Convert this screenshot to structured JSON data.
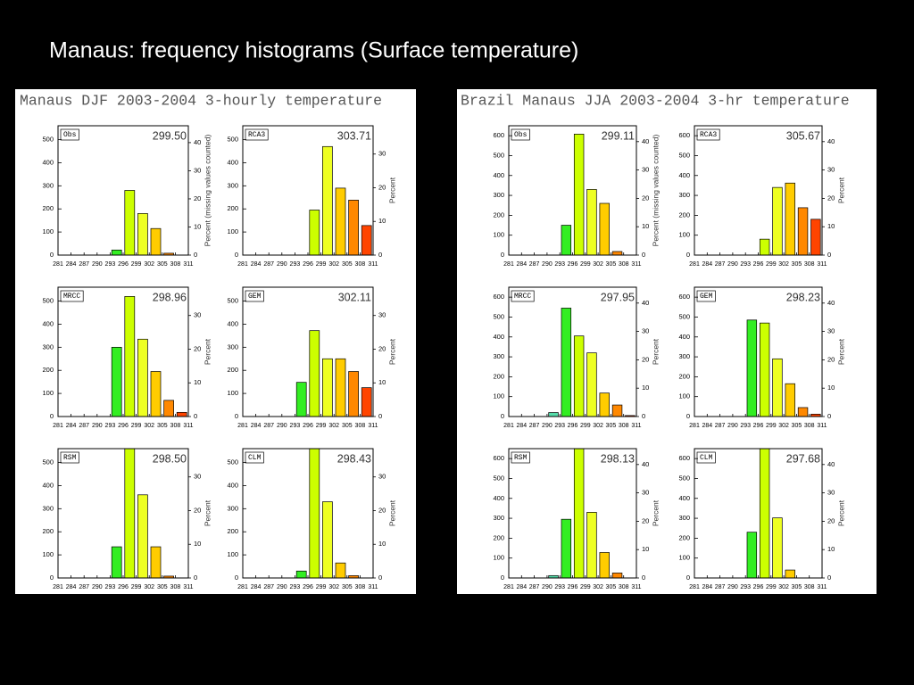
{
  "title": "Manaus: frequency histograms (Surface temperature)",
  "figure_titles": [
    "Manaus DJF 2003-2004 3-hourly temperature",
    "Brazil Manaus JJA 2003-2004 3-hr temperature"
  ],
  "bar_colors": [
    "#2255ff",
    "#2299ff",
    "#22ccdd",
    "#55ddaa",
    "#33ee22",
    "#ccff00",
    "#eeff22",
    "#ffcc00",
    "#ff8800",
    "#ff4400"
  ],
  "chart_data": [
    {
      "type": "histogram",
      "label": "Obs",
      "annotation": "299.50",
      "bins": [
        281,
        284,
        287,
        290,
        293,
        296,
        299,
        302,
        305,
        308,
        311
      ],
      "counts": [
        0,
        0,
        0,
        0,
        22,
        280,
        180,
        115,
        8,
        0
      ],
      "ylim": [
        0,
        560
      ],
      "yticks": [
        0,
        100,
        200,
        300,
        400,
        500
      ],
      "y2lim": [
        0,
        46
      ],
      "y2ticks": [
        0,
        10,
        20,
        30,
        40
      ],
      "y2label": "Percent (missing values counted)"
    },
    {
      "type": "histogram",
      "label": "RCA3",
      "annotation": "303.71",
      "bins": [
        281,
        284,
        287,
        290,
        293,
        296,
        299,
        302,
        305,
        308,
        311
      ],
      "counts": [
        0,
        0,
        0,
        0,
        0,
        195,
        470,
        290,
        238,
        128
      ],
      "ylim": [
        0,
        560
      ],
      "yticks": [
        0,
        100,
        200,
        300,
        400,
        500
      ],
      "y2lim": [
        0,
        38.4
      ],
      "y2ticks": [
        0,
        10,
        20,
        30
      ],
      "y2label": "Percent"
    },
    {
      "type": "histogram",
      "label": "MRCC",
      "annotation": "298.96",
      "bins": [
        281,
        284,
        287,
        290,
        293,
        296,
        299,
        302,
        305,
        308,
        311
      ],
      "counts": [
        0,
        0,
        0,
        0,
        300,
        520,
        335,
        195,
        70,
        18
      ],
      "ylim": [
        0,
        560
      ],
      "yticks": [
        0,
        100,
        200,
        300,
        400,
        500
      ],
      "y2lim": [
        0,
        38.4
      ],
      "y2ticks": [
        0,
        10,
        20,
        30
      ],
      "y2label": "Percent"
    },
    {
      "type": "histogram",
      "label": "GEM",
      "annotation": "302.11",
      "bins": [
        281,
        284,
        287,
        290,
        293,
        296,
        299,
        302,
        305,
        308,
        311
      ],
      "counts": [
        0,
        0,
        0,
        0,
        148,
        372,
        250,
        250,
        195,
        125
      ],
      "ylim": [
        0,
        560
      ],
      "yticks": [
        0,
        100,
        200,
        300,
        400,
        500
      ],
      "y2lim": [
        0,
        38.4
      ],
      "y2ticks": [
        0,
        10,
        20,
        30
      ],
      "y2label": "Percent"
    },
    {
      "type": "histogram",
      "label": "RSM",
      "annotation": "298.50",
      "bins": [
        281,
        284,
        287,
        290,
        293,
        296,
        299,
        302,
        305,
        308,
        311
      ],
      "counts": [
        0,
        0,
        0,
        0,
        135,
        560,
        360,
        135,
        8,
        0
      ],
      "ylim": [
        0,
        560
      ],
      "yticks": [
        0,
        100,
        200,
        300,
        400,
        500
      ],
      "y2lim": [
        0,
        38.4
      ],
      "y2ticks": [
        0,
        10,
        20,
        30
      ],
      "y2label": "Percent"
    },
    {
      "type": "histogram",
      "label": "CLM",
      "annotation": "298.43",
      "bins": [
        281,
        284,
        287,
        290,
        293,
        296,
        299,
        302,
        305,
        308,
        311
      ],
      "counts": [
        0,
        0,
        0,
        0,
        30,
        560,
        330,
        65,
        10,
        0
      ],
      "ylim": [
        0,
        560
      ],
      "yticks": [
        0,
        100,
        200,
        300,
        400,
        500
      ],
      "y2lim": [
        0,
        38.4
      ],
      "y2ticks": [
        0,
        10,
        20,
        30
      ],
      "y2label": "Percent"
    },
    {
      "type": "histogram",
      "label": "Obs",
      "annotation": "299.11",
      "bins": [
        281,
        284,
        287,
        290,
        293,
        296,
        299,
        302,
        305,
        308,
        311
      ],
      "counts": [
        0,
        0,
        0,
        0,
        150,
        608,
        330,
        260,
        18,
        0
      ],
      "ylim": [
        0,
        650
      ],
      "yticks": [
        0,
        100,
        200,
        300,
        400,
        500,
        600
      ],
      "y2lim": [
        0,
        45.6
      ],
      "y2ticks": [
        0,
        10,
        20,
        30,
        40
      ],
      "y2label": "Percent (missing values counted)"
    },
    {
      "type": "histogram",
      "label": "RCA3",
      "annotation": "305.67",
      "bins": [
        281,
        284,
        287,
        290,
        293,
        296,
        299,
        302,
        305,
        308,
        311
      ],
      "counts": [
        0,
        0,
        0,
        0,
        0,
        80,
        340,
        362,
        238,
        180
      ],
      "ylim": [
        0,
        650
      ],
      "yticks": [
        0,
        100,
        200,
        300,
        400,
        500,
        600
      ],
      "y2lim": [
        0,
        45.6
      ],
      "y2ticks": [
        0,
        10,
        20,
        30,
        40
      ],
      "y2label": "Percent"
    },
    {
      "type": "histogram",
      "label": "MRCC",
      "annotation": "297.95",
      "bins": [
        281,
        284,
        287,
        290,
        293,
        296,
        299,
        302,
        305,
        308,
        311
      ],
      "counts": [
        0,
        0,
        0,
        20,
        545,
        405,
        320,
        118,
        58,
        5
      ],
      "ylim": [
        0,
        650
      ],
      "yticks": [
        0,
        100,
        200,
        300,
        400,
        500,
        600
      ],
      "y2lim": [
        0,
        45.6
      ],
      "y2ticks": [
        0,
        10,
        20,
        30,
        40
      ],
      "y2label": "Percent"
    },
    {
      "type": "histogram",
      "label": "GEM",
      "annotation": "298.23",
      "bins": [
        281,
        284,
        287,
        290,
        293,
        296,
        299,
        302,
        305,
        308,
        311
      ],
      "counts": [
        0,
        0,
        0,
        0,
        485,
        470,
        290,
        165,
        45,
        12
      ],
      "ylim": [
        0,
        650
      ],
      "yticks": [
        0,
        100,
        200,
        300,
        400,
        500,
        600
      ],
      "y2lim": [
        0,
        45.6
      ],
      "y2ticks": [
        0,
        10,
        20,
        30,
        40
      ],
      "y2label": "Percent"
    },
    {
      "type": "histogram",
      "label": "RSM",
      "annotation": "298.13",
      "bins": [
        281,
        284,
        287,
        290,
        293,
        296,
        299,
        302,
        305,
        308,
        311
      ],
      "counts": [
        0,
        0,
        0,
        12,
        295,
        650,
        330,
        128,
        25,
        0
      ],
      "ylim": [
        0,
        650
      ],
      "yticks": [
        0,
        100,
        200,
        300,
        400,
        500,
        600
      ],
      "y2lim": [
        0,
        45.6
      ],
      "y2ticks": [
        0,
        10,
        20,
        30,
        40
      ],
      "y2label": "Percent"
    },
    {
      "type": "histogram",
      "label": "CLM",
      "annotation": "297.68",
      "bins": [
        281,
        284,
        287,
        290,
        293,
        296,
        299,
        302,
        305,
        308,
        311
      ],
      "counts": [
        0,
        0,
        0,
        0,
        230,
        650,
        302,
        40,
        0,
        0
      ],
      "ylim": [
        0,
        650
      ],
      "yticks": [
        0,
        100,
        200,
        300,
        400,
        500,
        600
      ],
      "y2lim": [
        0,
        45.6
      ],
      "y2ticks": [
        0,
        10,
        20,
        30,
        40
      ],
      "y2label": "Percent"
    }
  ]
}
